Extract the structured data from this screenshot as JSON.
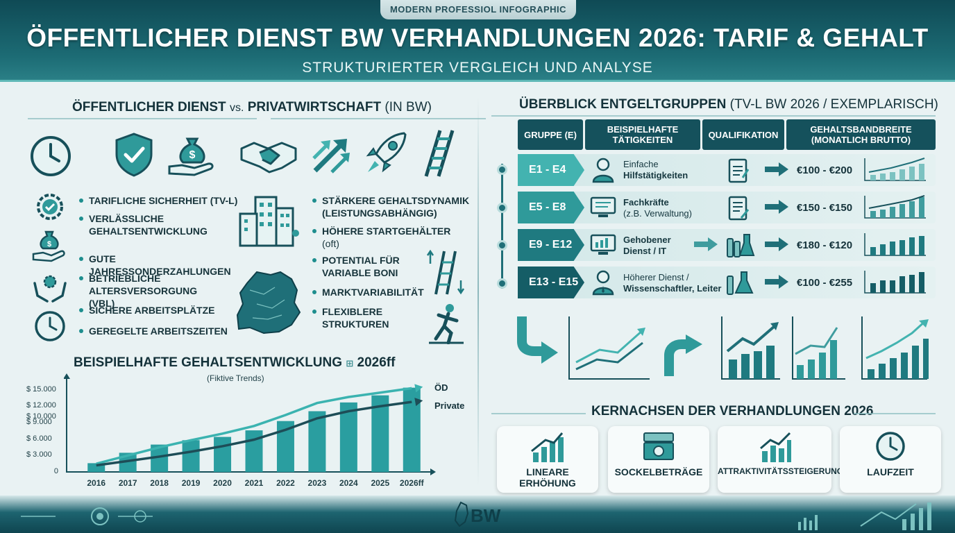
{
  "header": {
    "badge": "MODERN PROFESSIOL INFOGRAPHIC",
    "title": "ÖFFENTLICHER DIENST BW VERHANDLUNGEN 2026: TARIF & GEHALT",
    "subtitle": "STRUKTURIERTER VERGLEICH UND ANALYSE"
  },
  "comparison": {
    "heading_left": "ÖFFENTLICHER DIENST",
    "heading_vs": "vs.",
    "heading_right": "PRIVATWIRTSCHAFT",
    "heading_suffix": "(IN BW)",
    "public_items": [
      {
        "label": "TARIFLICHE SICHERHEIT (TV-L)"
      },
      {
        "label": "VERLÄSSLICHE GEHALTSENTWICKLUNG"
      },
      {
        "label": "GUTE JAHRESSONDERZAHLUNGEN"
      },
      {
        "label": "BETRIEBLICHE ALTERSVERSORGUNG (VBL)"
      },
      {
        "label": "SICHERE ARBEITSPLÄTZE"
      },
      {
        "label": "GEREGELTE ARBEITSZEITEN"
      }
    ],
    "private_items": [
      {
        "label": "STÄRKERE GEHALTSDYNAMIK (LEISTUNGSABHÄNGIG)",
        "note": ""
      },
      {
        "label": "HÖHERE STARTGEHÄLTER",
        "note": "(oft)"
      },
      {
        "label": "POTENTIAL FÜR VARIABLE BONI",
        "note": ""
      },
      {
        "label": "MARKTVARIABILITÄT",
        "note": ""
      },
      {
        "label": "FLEXIBLERE STRUKTUREN",
        "note": ""
      }
    ],
    "top_icons": [
      "clock-icon",
      "shield-check-icon",
      "money-bag-hand-icon",
      "handshake-icon",
      "growth-arrows-icon",
      "rocket-icon",
      "ladder-icon"
    ]
  },
  "table": {
    "heading": "ÜBERBLICK ENTGELTGRUPPEN",
    "heading_suffix": "(TV-L BW 2026 / EXEMPLARISCH)",
    "columns": [
      "GRUPPE (E)",
      "BEISPIELHAFTE TÄTIGKEITEN",
      "QUALIFIKATION",
      "GEHALTSBANDBREITE (MONATLICH BRUTTO)"
    ],
    "rows": [
      {
        "group": "E1 - E4",
        "activity_1": "Einfache",
        "activity_2": "Hilfstätigkeiten",
        "salary": "€100 - €200",
        "color": "#43b3b0"
      },
      {
        "group": "E5 - E8",
        "activity_1": "Fachkräfte",
        "activity_2": "(z.B. Verwaltung)",
        "salary": "€150 - €150",
        "color": "#2f9a9a"
      },
      {
        "group": "E9 - E12",
        "activity_1": "Gehobener",
        "activity_2": "Dienst / IT",
        "salary": "€180 - €120",
        "color": "#1f7a80"
      },
      {
        "group": "E13 - E15",
        "activity_1": "Höherer Dienst /",
        "activity_2": "Wissenschaftler, Leiter",
        "salary": "€100 - €255",
        "color": "#155d66"
      }
    ]
  },
  "negotiation": {
    "heading": "KERNACHSEN DER VERHANDLUNGEN 2026",
    "cards": [
      {
        "label": "LINEARE ERHÖHUNG",
        "icon": "bar-chart-up-icon"
      },
      {
        "label": "SOCKELBETRÄGE",
        "icon": "banknote-icon"
      },
      {
        "label": "ATTRAKTIVITÄTSSTEIGERUNG",
        "icon": "growth-chart-icon"
      },
      {
        "label": "LAUFZEIT",
        "icon": "clock-icon"
      }
    ]
  },
  "footer": {
    "logo_text": "BW"
  },
  "chart_data": {
    "type": "bar",
    "title": "BEISPIELHAFTE GEHALTSENTWICKLUNG",
    "title_suffix": "2026ff",
    "subtitle": "(Fiktive Trends)",
    "categories": [
      "2016",
      "2017",
      "2018",
      "2019",
      "2020",
      "2021",
      "2022",
      "2023",
      "2024",
      "2025",
      "2026ff"
    ],
    "y_ticks": [
      "0",
      "$ 3.000",
      "$ 6.000",
      "$ 9.000",
      "$ 10.000",
      "$ 12.000",
      "$ 15.000"
    ],
    "bar_values": [
      1600,
      3500,
      5000,
      5800,
      6400,
      7600,
      9300,
      11100,
      12700,
      14000,
      15400
    ],
    "series": [
      {
        "name": "ÖD",
        "type": "line",
        "values": [
          1500,
          3000,
          4500,
          5800,
          7000,
          8400,
          10400,
          12600,
          13700,
          14500,
          15300
        ],
        "color": "#3bb3b0"
      },
      {
        "name": "Private",
        "type": "line",
        "values": [
          1200,
          2000,
          2800,
          3700,
          4700,
          5900,
          7700,
          9800,
          11100,
          12000,
          12800
        ],
        "color": "#1d4d57"
      }
    ],
    "ylim": [
      0,
      17000
    ],
    "bar_color": "#2a9ea0"
  }
}
